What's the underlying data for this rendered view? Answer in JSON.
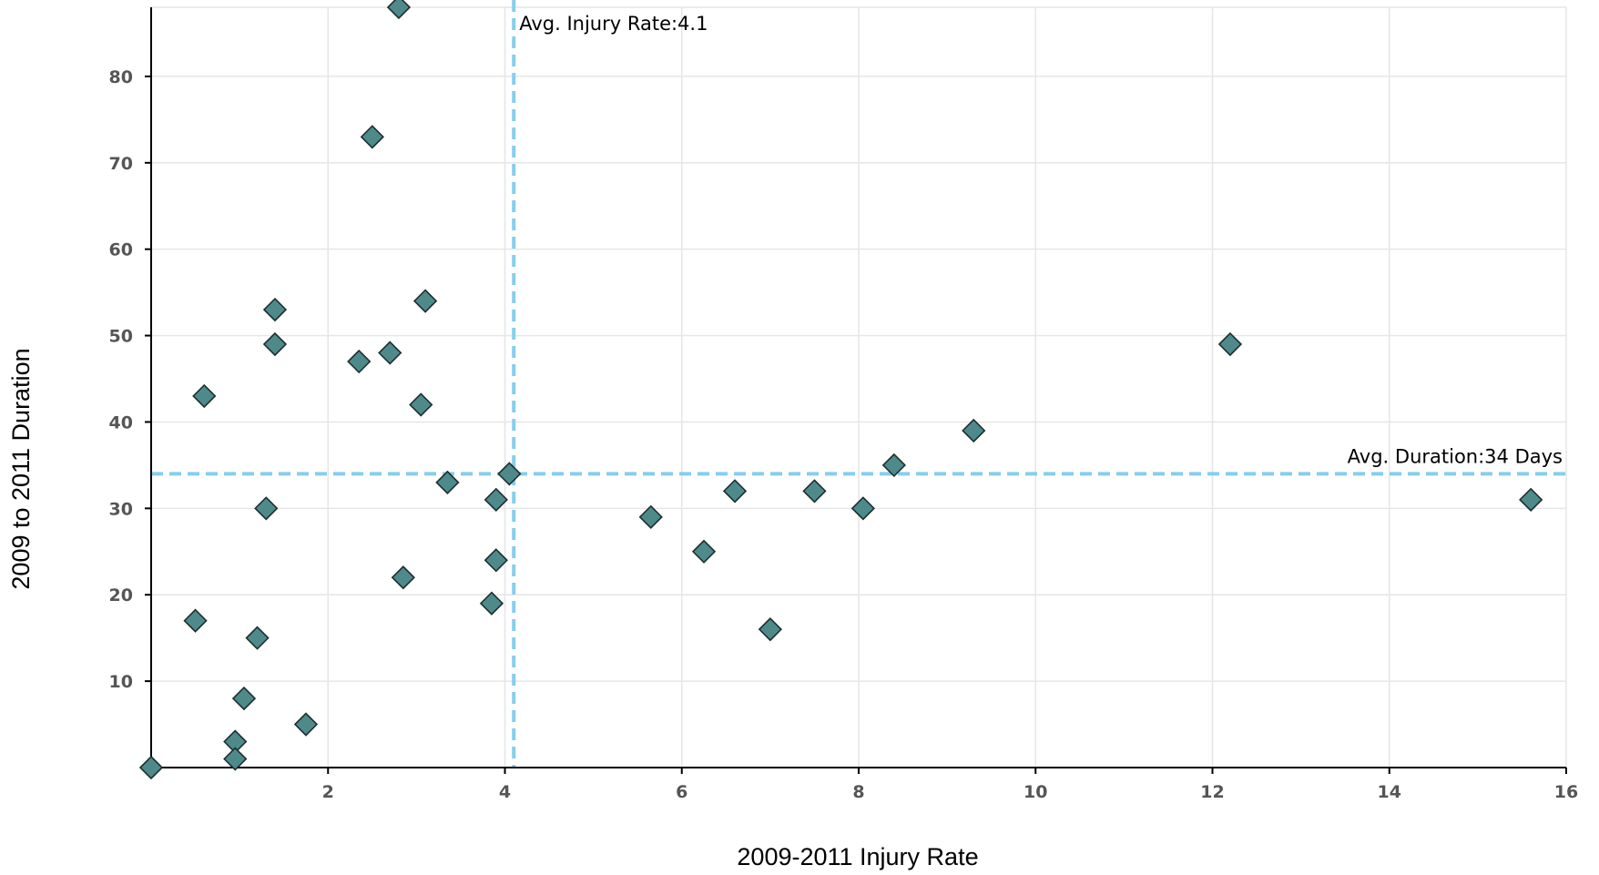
{
  "chart_data": {
    "type": "scatter",
    "title": "",
    "xlabel": "2009-2011 Injury Rate",
    "ylabel": "2009 to 2011 Duration",
    "xlim": [
      0,
      16
    ],
    "ylim": [
      0,
      88
    ],
    "x_ticks": [
      2,
      4,
      6,
      8,
      10,
      12,
      14,
      16
    ],
    "y_ticks": [
      10,
      20,
      30,
      40,
      50,
      60,
      70,
      80
    ],
    "grid": true,
    "marker": "diamond",
    "colors": {
      "marker_fill": "#4f8a8b",
      "marker_stroke": "#1e2e2e",
      "reference_line": "#87ceeb",
      "grid": "#e6e6e6",
      "axis": "#000000"
    },
    "reference_lines": [
      {
        "orientation": "vertical",
        "value": 4.1,
        "label": "Avg. Injury Rate:4.1"
      },
      {
        "orientation": "horizontal",
        "value": 34,
        "label": "Avg. Duration:34 Days"
      }
    ],
    "points": [
      {
        "x": 2.8,
        "y": 88
      },
      {
        "x": 2.5,
        "y": 73
      },
      {
        "x": 3.1,
        "y": 54
      },
      {
        "x": 1.4,
        "y": 53
      },
      {
        "x": 1.4,
        "y": 49
      },
      {
        "x": 2.7,
        "y": 48
      },
      {
        "x": 2.35,
        "y": 47
      },
      {
        "x": 0.6,
        "y": 43
      },
      {
        "x": 3.05,
        "y": 42
      },
      {
        "x": 3.35,
        "y": 33
      },
      {
        "x": 4.05,
        "y": 34
      },
      {
        "x": 3.9,
        "y": 31
      },
      {
        "x": 1.3,
        "y": 30
      },
      {
        "x": 3.9,
        "y": 24
      },
      {
        "x": 2.85,
        "y": 22
      },
      {
        "x": 3.85,
        "y": 19
      },
      {
        "x": 0.5,
        "y": 17
      },
      {
        "x": 1.2,
        "y": 15
      },
      {
        "x": 1.05,
        "y": 8
      },
      {
        "x": 1.75,
        "y": 5
      },
      {
        "x": 0.95,
        "y": 3
      },
      {
        "x": 0.95,
        "y": 1
      },
      {
        "x": 0.0,
        "y": 0
      },
      {
        "x": 5.65,
        "y": 29
      },
      {
        "x": 6.25,
        "y": 25
      },
      {
        "x": 6.6,
        "y": 32
      },
      {
        "x": 7.0,
        "y": 16
      },
      {
        "x": 7.5,
        "y": 32
      },
      {
        "x": 8.05,
        "y": 30
      },
      {
        "x": 8.4,
        "y": 35
      },
      {
        "x": 9.3,
        "y": 39
      },
      {
        "x": 12.2,
        "y": 49
      },
      {
        "x": 15.6,
        "y": 31
      }
    ]
  }
}
